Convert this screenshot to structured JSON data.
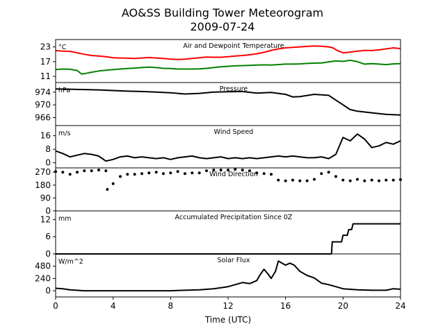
{
  "figure": {
    "title_line1": "AO&SS Building Tower Meteorogram",
    "title_line2": "2009-07-24",
    "xlabel": "Time (UTC)",
    "xticks": [
      0,
      4,
      8,
      12,
      16,
      20,
      24
    ],
    "xlim": [
      0,
      24
    ]
  },
  "chart_data": [
    {
      "type": "line",
      "title": "Air and Dewpoint Temperature",
      "unit_label": "°C",
      "ylim": [
        8.5,
        26
      ],
      "yticks": [
        11,
        17,
        23
      ],
      "series": [
        {
          "color": "#ff0000",
          "x": [
            0,
            0.5,
            1,
            1.5,
            2,
            2.5,
            3,
            3.5,
            4,
            4.5,
            5,
            5.5,
            6,
            6.5,
            7,
            7.5,
            8,
            8.5,
            9,
            9.5,
            10,
            10.5,
            11,
            11.5,
            12,
            12.5,
            13,
            13.5,
            14,
            14.5,
            15,
            15.5,
            16,
            16.5,
            17,
            17.5,
            18,
            18.5,
            19,
            19.3,
            19.6,
            20,
            20.5,
            21,
            21.5,
            22,
            22.5,
            23,
            23.5,
            24
          ],
          "y": [
            21.5,
            21.3,
            21.2,
            20.6,
            20.0,
            19.5,
            19.3,
            19.0,
            18.6,
            18.5,
            18.4,
            18.3,
            18.5,
            18.7,
            18.5,
            18.3,
            18.0,
            17.9,
            18.0,
            18.3,
            18.6,
            18.9,
            18.8,
            18.8,
            19.0,
            19.3,
            19.5,
            19.8,
            20.2,
            20.8,
            21.6,
            22.2,
            22.6,
            22.8,
            23.0,
            23.2,
            23.4,
            23.3,
            23.0,
            22.6,
            21.5,
            20.6,
            20.9,
            21.3,
            21.6,
            21.5,
            21.8,
            22.2,
            22.6,
            22.3
          ]
        },
        {
          "color": "#008000",
          "x": [
            0,
            0.5,
            1,
            1.5,
            1.8,
            2,
            2.5,
            3,
            3.5,
            4,
            4.5,
            5,
            5.5,
            6,
            6.5,
            7,
            7.5,
            8,
            8.5,
            9,
            9.5,
            10,
            10.5,
            11,
            11.5,
            12,
            12.5,
            13,
            13.5,
            14,
            14.5,
            15,
            15.5,
            16,
            16.5,
            17,
            17.5,
            18,
            18.5,
            19,
            19.5,
            20,
            20.5,
            21,
            21.5,
            22,
            22.5,
            23,
            23.5,
            24
          ],
          "y": [
            13.8,
            14.0,
            13.9,
            13.4,
            12.0,
            12.1,
            12.7,
            13.2,
            13.5,
            13.8,
            14.0,
            14.2,
            14.4,
            14.6,
            14.8,
            14.6,
            14.3,
            14.2,
            14.0,
            14.0,
            14.0,
            14.1,
            14.3,
            14.6,
            14.9,
            15.1,
            15.3,
            15.4,
            15.5,
            15.6,
            15.7,
            15.6,
            15.8,
            16.0,
            16.0,
            16.1,
            16.3,
            16.4,
            16.5,
            16.9,
            17.3,
            17.1,
            17.6,
            17.0,
            16.0,
            16.2,
            16.0,
            15.8,
            16.1,
            16.2
          ]
        }
      ]
    },
    {
      "type": "line",
      "title": "Pressure",
      "unit_label": "hPa",
      "ylim": [
        963.5,
        977
      ],
      "yticks": [
        966,
        970,
        974
      ],
      "series": [
        {
          "color": "#000000",
          "x": [
            0,
            1,
            2,
            3,
            4,
            5,
            6,
            7,
            8,
            9,
            10,
            11,
            12,
            13,
            14,
            15,
            16,
            16.5,
            17,
            18,
            19,
            19.5,
            20,
            20.5,
            21,
            22,
            23,
            24
          ],
          "y": [
            975.0,
            974.9,
            974.8,
            974.7,
            974.5,
            974.3,
            974.2,
            974.0,
            973.8,
            973.4,
            973.6,
            974.0,
            974.1,
            974.2,
            973.7,
            973.9,
            973.3,
            972.5,
            972.6,
            973.3,
            973.0,
            971.5,
            970.0,
            968.5,
            968.0,
            967.5,
            967.0,
            966.8
          ]
        }
      ]
    },
    {
      "type": "line",
      "title": "Wind Speed",
      "unit_label": "m/s",
      "ylim": [
        -3,
        22
      ],
      "yticks": [
        0,
        8,
        16
      ],
      "series": [
        {
          "color": "#000000",
          "x": [
            0,
            0.5,
            1,
            1.5,
            2,
            2.5,
            3,
            3.5,
            4,
            4.5,
            5,
            5.5,
            6,
            6.5,
            7,
            7.5,
            8,
            8.5,
            9,
            9.5,
            10,
            10.5,
            11,
            11.5,
            12,
            12.5,
            13,
            13.5,
            14,
            14.5,
            15,
            15.5,
            16,
            16.5,
            17,
            17.5,
            18,
            18.5,
            19,
            19.5,
            20,
            20.5,
            21,
            21.5,
            22,
            22.5,
            23,
            23.5,
            24
          ],
          "y": [
            7,
            5.5,
            3.5,
            4.5,
            5.5,
            5.0,
            4.0,
            1.0,
            2.0,
            3.5,
            4.0,
            3.0,
            3.5,
            3.0,
            2.5,
            3.0,
            2.0,
            3.0,
            3.5,
            4.0,
            3.0,
            2.5,
            3.0,
            3.5,
            2.5,
            3.0,
            2.5,
            3.0,
            2.5,
            3.0,
            3.5,
            4.0,
            3.5,
            4.0,
            3.5,
            3.0,
            3.0,
            3.5,
            2.5,
            5.0,
            15.0,
            13.0,
            17.0,
            14.0,
            9.0,
            10.0,
            12.0,
            11.0,
            13.0
          ]
        }
      ]
    },
    {
      "type": "scatter",
      "title": "Wind Direction",
      "unit_label": "",
      "ylim": [
        0,
        300
      ],
      "yticks": [
        0,
        90,
        180,
        270
      ],
      "series": [
        {
          "color": "#000000",
          "x": [
            0,
            0.5,
            1,
            1.5,
            2,
            2.5,
            3,
            3.5,
            3.6,
            4,
            4.5,
            5,
            5.5,
            6,
            6.5,
            7,
            7.5,
            8,
            8.5,
            9,
            9.5,
            10,
            10.5,
            11,
            11.5,
            12,
            12.5,
            13,
            13.5,
            14,
            14.5,
            15,
            15.5,
            16,
            16.5,
            17,
            17.5,
            18,
            18.5,
            19,
            19.5,
            20,
            20.5,
            21,
            21.5,
            22,
            22.5,
            23,
            23.5,
            24
          ],
          "y": [
            275,
            270,
            255,
            270,
            280,
            280,
            285,
            280,
            150,
            190,
            240,
            255,
            255,
            260,
            265,
            270,
            260,
            265,
            275,
            260,
            265,
            265,
            280,
            285,
            285,
            285,
            290,
            285,
            280,
            265,
            260,
            255,
            215,
            210,
            215,
            210,
            210,
            220,
            260,
            270,
            240,
            215,
            210,
            220,
            210,
            215,
            210,
            215,
            215,
            218
          ]
        }
      ]
    },
    {
      "type": "line",
      "title": "Accumulated Precipitation Since 0Z",
      "unit_label": "mm",
      "ylim": [
        0,
        15
      ],
      "yticks": [
        0,
        6,
        12
      ],
      "series": [
        {
          "color": "#000000",
          "x": [
            0,
            19.2,
            19.25,
            19.9,
            20.0,
            20.3,
            20.4,
            20.6,
            20.7,
            24
          ],
          "y": [
            0,
            0,
            4.2,
            4.2,
            6.5,
            6.5,
            8.5,
            8.5,
            10.5,
            10.5
          ]
        }
      ]
    },
    {
      "type": "line",
      "title": "Solar Flux",
      "unit_label": "W/m^2",
      "ylim": [
        -120,
        720
      ],
      "yticks": [
        0,
        240,
        480
      ],
      "series": [
        {
          "color": "#000000",
          "x": [
            0,
            0.5,
            1,
            2,
            4,
            6,
            8,
            9,
            10,
            11,
            12,
            12.5,
            13,
            13.5,
            14,
            14.2,
            14.5,
            14.8,
            15,
            15.3,
            15.5,
            16,
            16.3,
            16.6,
            17,
            17.5,
            18,
            18.5,
            19,
            19.5,
            20,
            21,
            22,
            23,
            23.5,
            24
          ],
          "y": [
            50,
            40,
            20,
            0,
            0,
            0,
            0,
            10,
            20,
            40,
            80,
            120,
            160,
            140,
            200,
            300,
            420,
            320,
            240,
            380,
            580,
            500,
            540,
            500,
            380,
            300,
            250,
            150,
            120,
            80,
            40,
            20,
            10,
            10,
            40,
            30
          ]
        }
      ]
    }
  ]
}
